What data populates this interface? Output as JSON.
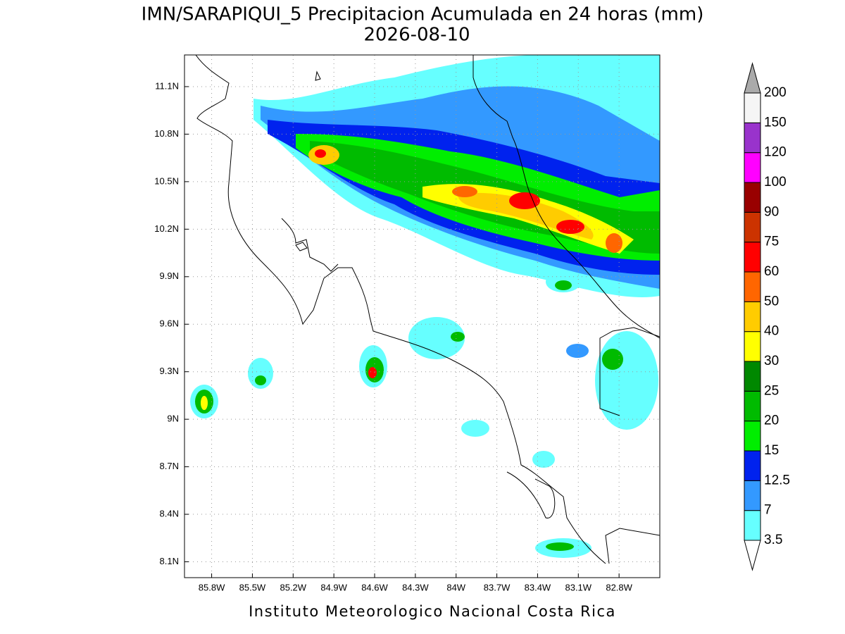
{
  "header": {
    "title": "IMN/SARAPIQUI_5 Precipitacion Acumulada en 24 horas (mm)",
    "date": "2026-08-10"
  },
  "map": {
    "lonlim": [
      -86.0,
      -82.5
    ],
    "latlim": [
      8.0,
      11.3
    ],
    "lat_ticks": [
      {
        "value": 11.1,
        "label": "11.1N"
      },
      {
        "value": 10.8,
        "label": "10.8N"
      },
      {
        "value": 10.5,
        "label": "10.5N"
      },
      {
        "value": 10.2,
        "label": "10.2N"
      },
      {
        "value": 9.9,
        "label": "9.9N"
      },
      {
        "value": 9.6,
        "label": "9.6N"
      },
      {
        "value": 9.3,
        "label": "9.3N"
      },
      {
        "value": 9,
        "label": "9N"
      },
      {
        "value": 8.7,
        "label": "8.7N"
      },
      {
        "value": 8.4,
        "label": "8.4N"
      },
      {
        "value": 8.1,
        "label": "8.1N"
      }
    ],
    "lon_ticks": [
      {
        "value": -85.8,
        "label": "85.8W"
      },
      {
        "value": -85.5,
        "label": "85.5W"
      },
      {
        "value": -85.2,
        "label": "85.2W"
      },
      {
        "value": -84.9,
        "label": "84.9W"
      },
      {
        "value": -84.6,
        "label": "84.6W"
      },
      {
        "value": -84.3,
        "label": "84.3W"
      },
      {
        "value": -84,
        "label": "84W"
      },
      {
        "value": -83.7,
        "label": "83.7W"
      },
      {
        "value": -83.4,
        "label": "83.4W"
      },
      {
        "value": -83.1,
        "label": "83.1W"
      },
      {
        "value": -82.8,
        "label": "82.8W"
      }
    ]
  },
  "legend": {
    "levels": [
      3.5,
      7,
      12.5,
      15,
      20,
      25,
      30,
      40,
      50,
      60,
      75,
      90,
      100,
      120,
      150,
      200
    ],
    "colors": [
      "#66ffff",
      "#3399ff",
      "#0022ee",
      "#00ee00",
      "#00bb00",
      "#008800",
      "#ffff00",
      "#ffcc00",
      "#ff6600",
      "#ff0000",
      "#cc3300",
      "#990000",
      "#ff00ff",
      "#9933cc",
      "#f5f5f5"
    ],
    "over_color": "#aaaaaa",
    "under_color": "#ffffff"
  },
  "footer": "Instituto Meteorologico Nacional Costa Rica"
}
